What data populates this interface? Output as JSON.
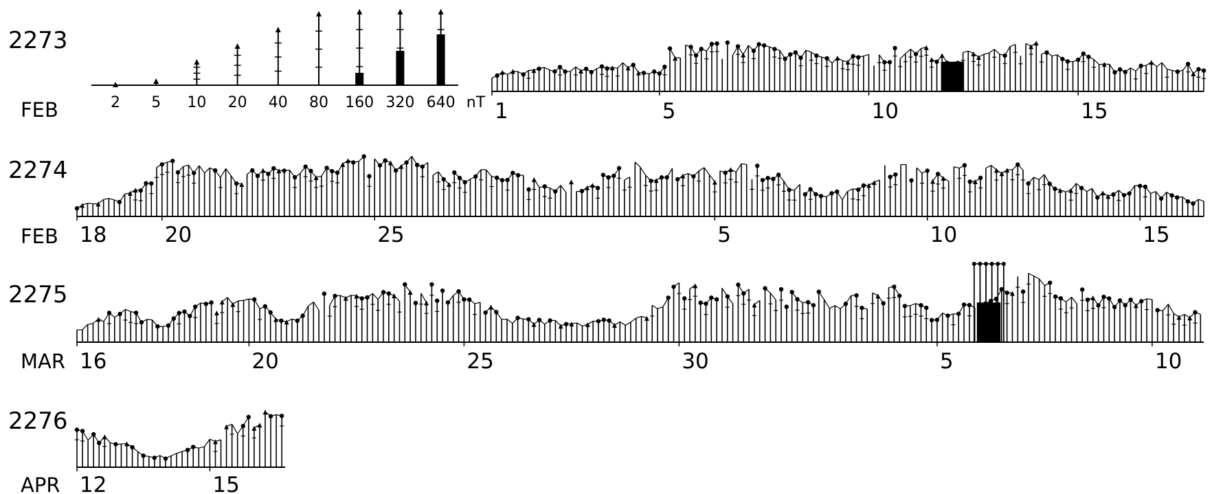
{
  "chart_data": {
    "type": "bar",
    "legend": {
      "levels": [
        "2",
        "5",
        "10",
        "20",
        "40",
        "80",
        "160",
        "320",
        "640"
      ],
      "unit": "nT"
    },
    "rows": [
      {
        "rotation": "2273",
        "month": "FEB",
        "ticks": [
          {
            "day": 1,
            "label": "1"
          },
          {
            "day": 5,
            "label": "5"
          },
          {
            "day": 10,
            "label": "10"
          },
          {
            "day": 15,
            "label": "15"
          }
        ],
        "day_range": [
          1,
          18
        ]
      },
      {
        "rotation": "2274",
        "month": "FEB",
        "ticks": [
          {
            "day": 18,
            "label": "18"
          },
          {
            "day": 20,
            "label": "20"
          },
          {
            "day": 25,
            "label": "25"
          },
          {
            "day": 33,
            "label": "5"
          },
          {
            "day": 38,
            "label": "10"
          },
          {
            "day": 43,
            "label": "15"
          }
        ],
        "day_range": [
          18,
          44.5
        ]
      },
      {
        "rotation": "2275",
        "month": "MAR",
        "ticks": [
          {
            "day": 16,
            "label": "16"
          },
          {
            "day": 20,
            "label": "20"
          },
          {
            "day": 25,
            "label": "25"
          },
          {
            "day": 30,
            "label": "30"
          },
          {
            "day": 36,
            "label": "5"
          },
          {
            "day": 41,
            "label": "10"
          }
        ],
        "day_range": [
          16,
          42.2
        ]
      },
      {
        "rotation": "2276",
        "month": "APR",
        "ticks": [
          {
            "day": 12,
            "label": "12"
          },
          {
            "day": 15,
            "label": "15"
          }
        ],
        "day_range": [
          12,
          16.7
        ]
      }
    ],
    "activity_profile": [
      {
        "row": "2273",
        "points": [
          [
            1,
            1.3
          ],
          [
            3,
            1.7
          ],
          [
            4,
            2.0
          ],
          [
            5,
            1.2
          ],
          [
            5.3,
            3.0
          ],
          [
            7,
            3.2
          ],
          [
            8.5,
            2.6
          ],
          [
            10,
            2.4
          ],
          [
            11,
            3.0
          ],
          [
            12,
            2.6
          ],
          [
            13,
            2.8
          ],
          [
            14,
            3.2
          ],
          [
            15,
            2.8
          ],
          [
            16,
            1.6
          ],
          [
            17,
            2.0
          ],
          [
            18,
            1.6
          ]
        ],
        "big_events": [
          [
            12.0,
            5.2
          ]
        ]
      },
      {
        "row": "2274",
        "points": [
          [
            18,
            0.6
          ],
          [
            19,
            1.0
          ],
          [
            20,
            2.8
          ],
          [
            22,
            2.4
          ],
          [
            24,
            3.0
          ],
          [
            26,
            3.0
          ],
          [
            27,
            2.2
          ],
          [
            28,
            2.6
          ],
          [
            29,
            1.6
          ],
          [
            30,
            1.8
          ],
          [
            31,
            2.8
          ],
          [
            33,
            2.4
          ],
          [
            34,
            2.8
          ],
          [
            35,
            1.6
          ],
          [
            36,
            1.2
          ],
          [
            37,
            2.8
          ],
          [
            39,
            2.6
          ],
          [
            40,
            2.8
          ],
          [
            41,
            2.0
          ],
          [
            42,
            1.4
          ],
          [
            43,
            1.6
          ],
          [
            44.5,
            0.8
          ]
        ],
        "big_events": []
      },
      {
        "row": "2275",
        "points": [
          [
            16,
            0.6
          ],
          [
            17,
            1.8
          ],
          [
            18,
            1.0
          ],
          [
            19,
            2.0
          ],
          [
            20,
            2.2
          ],
          [
            21,
            1.2
          ],
          [
            22,
            2.6
          ],
          [
            24,
            2.8
          ],
          [
            25,
            2.4
          ],
          [
            26,
            1.2
          ],
          [
            27,
            1.2
          ],
          [
            28,
            1.0
          ],
          [
            29,
            1.2
          ],
          [
            30,
            2.8
          ],
          [
            32,
            2.6
          ],
          [
            33,
            2.4
          ],
          [
            34,
            2.2
          ],
          [
            35,
            2.6
          ],
          [
            36,
            1.4
          ],
          [
            37,
            2.4
          ],
          [
            38,
            3.4
          ],
          [
            39,
            2.6
          ],
          [
            40,
            2.2
          ],
          [
            41,
            2.0
          ],
          [
            42.2,
            1.6
          ]
        ],
        "big_events": [
          [
            37.2,
            4.6
          ]
        ]
      },
      {
        "row": "2276",
        "points": [
          [
            12,
            2.0
          ],
          [
            13,
            1.4
          ],
          [
            13.6,
            0.6
          ],
          [
            14,
            0.6
          ],
          [
            14.5,
            1.0
          ],
          [
            15,
            1.6
          ],
          [
            15.6,
            2.4
          ],
          [
            16.2,
            3.0
          ],
          [
            16.7,
            2.6
          ]
        ],
        "big_events": []
      }
    ]
  }
}
